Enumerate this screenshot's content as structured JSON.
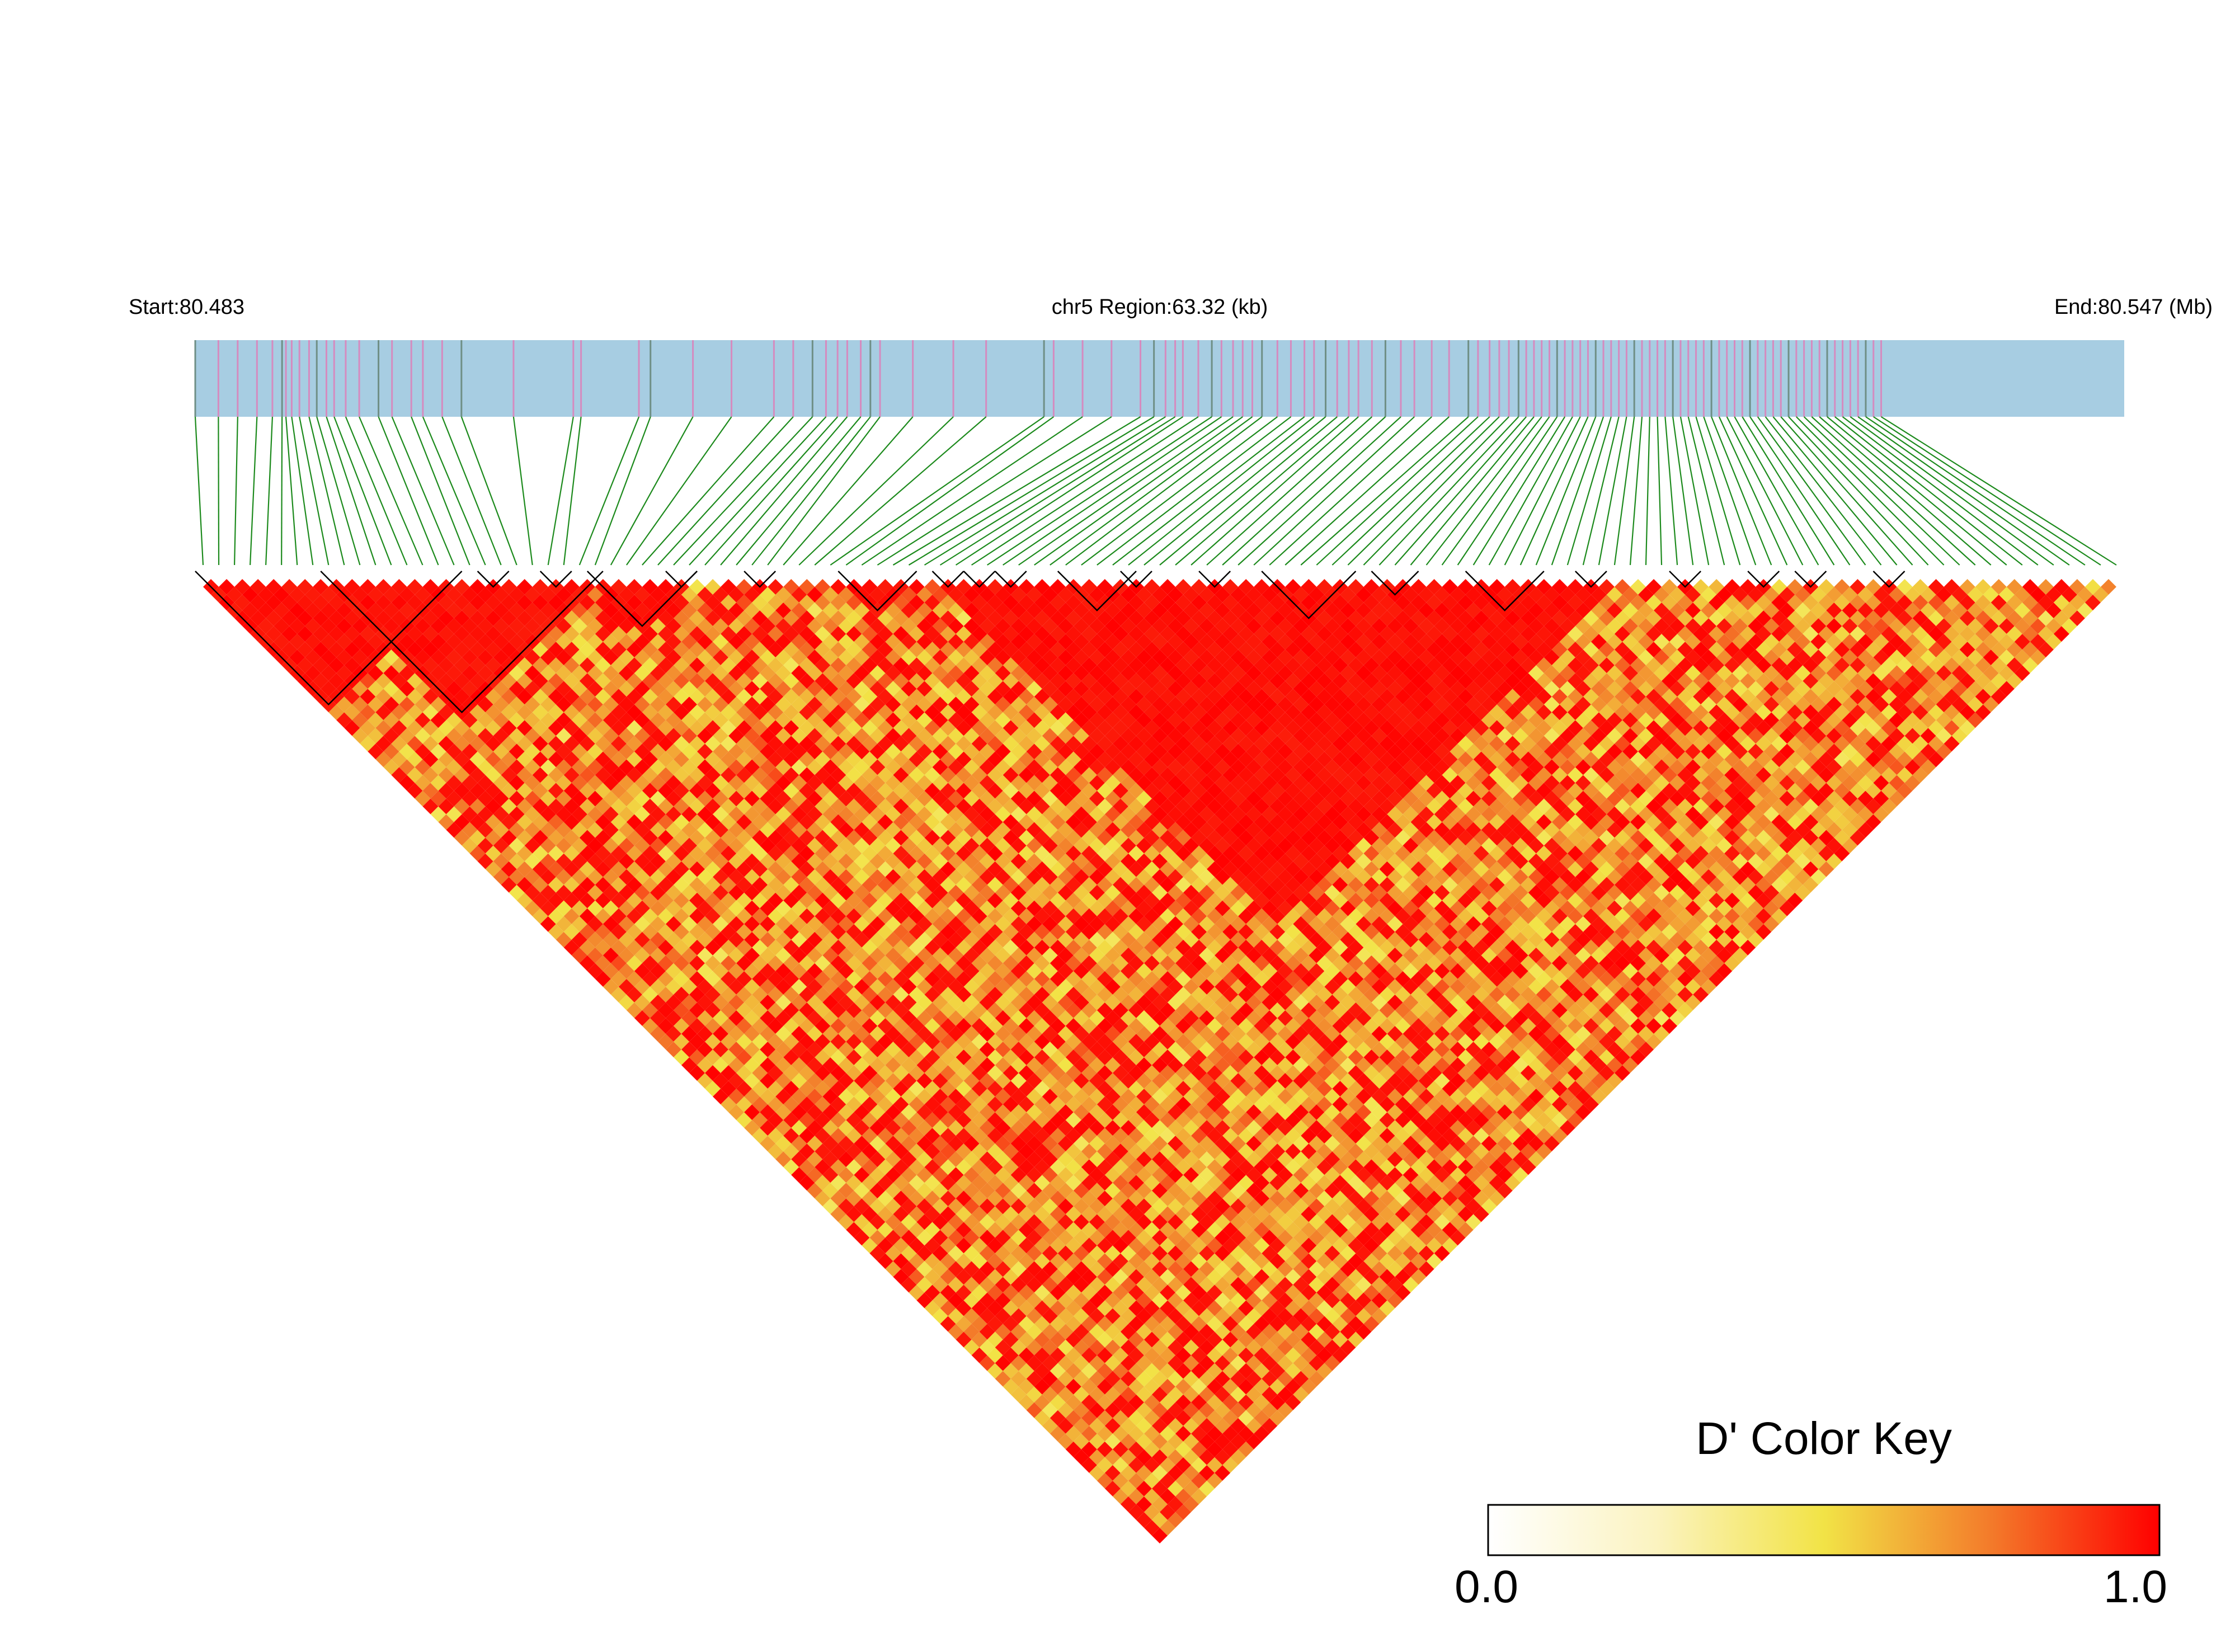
{
  "header": {
    "start_label": "Start:80.483",
    "region_label": "chr5 Region:63.32 (kb)",
    "end_label": "End:80.547 (Mb)"
  },
  "colors": {
    "track": "#a7cde2",
    "snp_tick_pink": "#d58bbf",
    "snp_tick_gray": "#6f8f86",
    "connector": "#1c8a1c",
    "block_outline": "#000000",
    "ld_high": "#ff0000",
    "ld_mid": "#ef6a28",
    "ld_yellow": "#f2e346",
    "ld_low": "#fffbe6"
  },
  "chart_data": {
    "type": "heatmap",
    "title": "",
    "region": {
      "chromosome": "chr5",
      "start_mb": 80.483,
      "end_mb": 80.547,
      "length_kb": 63.32
    },
    "snp_count": 123,
    "snp_positions_frac": [
      0,
      0.012,
      0.022,
      0.032,
      0.04,
      0.045,
      0.047,
      0.05,
      0.054,
      0.059,
      0.063,
      0.068,
      0.072,
      0.078,
      0.085,
      0.095,
      0.102,
      0.112,
      0.118,
      0.128,
      0.138,
      0.165,
      0.196,
      0.2,
      0.23,
      0.236,
      0.258,
      0.278,
      0.3,
      0.31,
      0.32,
      0.327,
      0.333,
      0.338,
      0.345,
      0.35,
      0.355,
      0.372,
      0.393,
      0.41,
      0.44,
      0.445,
      0.46,
      0.475,
      0.49,
      0.497,
      0.503,
      0.508,
      0.512,
      0.52,
      0.527,
      0.532,
      0.538,
      0.543,
      0.548,
      0.553,
      0.561,
      0.568,
      0.575,
      0.58,
      0.586,
      0.592,
      0.598,
      0.603,
      0.61,
      0.617,
      0.625,
      0.632,
      0.641,
      0.65,
      0.66,
      0.665,
      0.671,
      0.676,
      0.681,
      0.686,
      0.69,
      0.694,
      0.698,
      0.702,
      0.706,
      0.71,
      0.714,
      0.718,
      0.722,
      0.726,
      0.73,
      0.734,
      0.738,
      0.742,
      0.746,
      0.75,
      0.754,
      0.758,
      0.762,
      0.766,
      0.77,
      0.774,
      0.778,
      0.782,
      0.786,
      0.79,
      0.794,
      0.798,
      0.802,
      0.806,
      0.81,
      0.814,
      0.818,
      0.822,
      0.826,
      0.83,
      0.834,
      0.838,
      0.842,
      0.846,
      0.85,
      0.854,
      0.858,
      0.862,
      0.866,
      0.87,
      0.874
    ],
    "blocks": [
      {
        "first_snp": 0,
        "last_snp": 16
      },
      {
        "first_snp": 8,
        "last_snp": 25
      },
      {
        "first_snp": 18,
        "last_snp": 19
      },
      {
        "first_snp": 22,
        "last_snp": 23
      },
      {
        "first_snp": 25,
        "last_snp": 31
      },
      {
        "first_snp": 30,
        "last_snp": 31
      },
      {
        "first_snp": 35,
        "last_snp": 36
      },
      {
        "first_snp": 41,
        "last_snp": 45
      },
      {
        "first_snp": 47,
        "last_snp": 48
      },
      {
        "first_snp": 49,
        "last_snp": 50
      },
      {
        "first_snp": 51,
        "last_snp": 52
      },
      {
        "first_snp": 55,
        "last_snp": 59
      },
      {
        "first_snp": 59,
        "last_snp": 60
      },
      {
        "first_snp": 64,
        "last_snp": 65
      },
      {
        "first_snp": 68,
        "last_snp": 73
      },
      {
        "first_snp": 75,
        "last_snp": 77
      },
      {
        "first_snp": 81,
        "last_snp": 85
      },
      {
        "first_snp": 88,
        "last_snp": 89
      },
      {
        "first_snp": 94,
        "last_snp": 95
      },
      {
        "first_snp": 99,
        "last_snp": 100
      },
      {
        "first_snp": 102,
        "last_snp": 103
      },
      {
        "first_snp": 107,
        "last_snp": 108
      }
    ],
    "color_key": {
      "title": "D' Color Key",
      "min": 0.0,
      "max": 1.0,
      "min_label": "0.0",
      "max_label": "1.0"
    }
  }
}
